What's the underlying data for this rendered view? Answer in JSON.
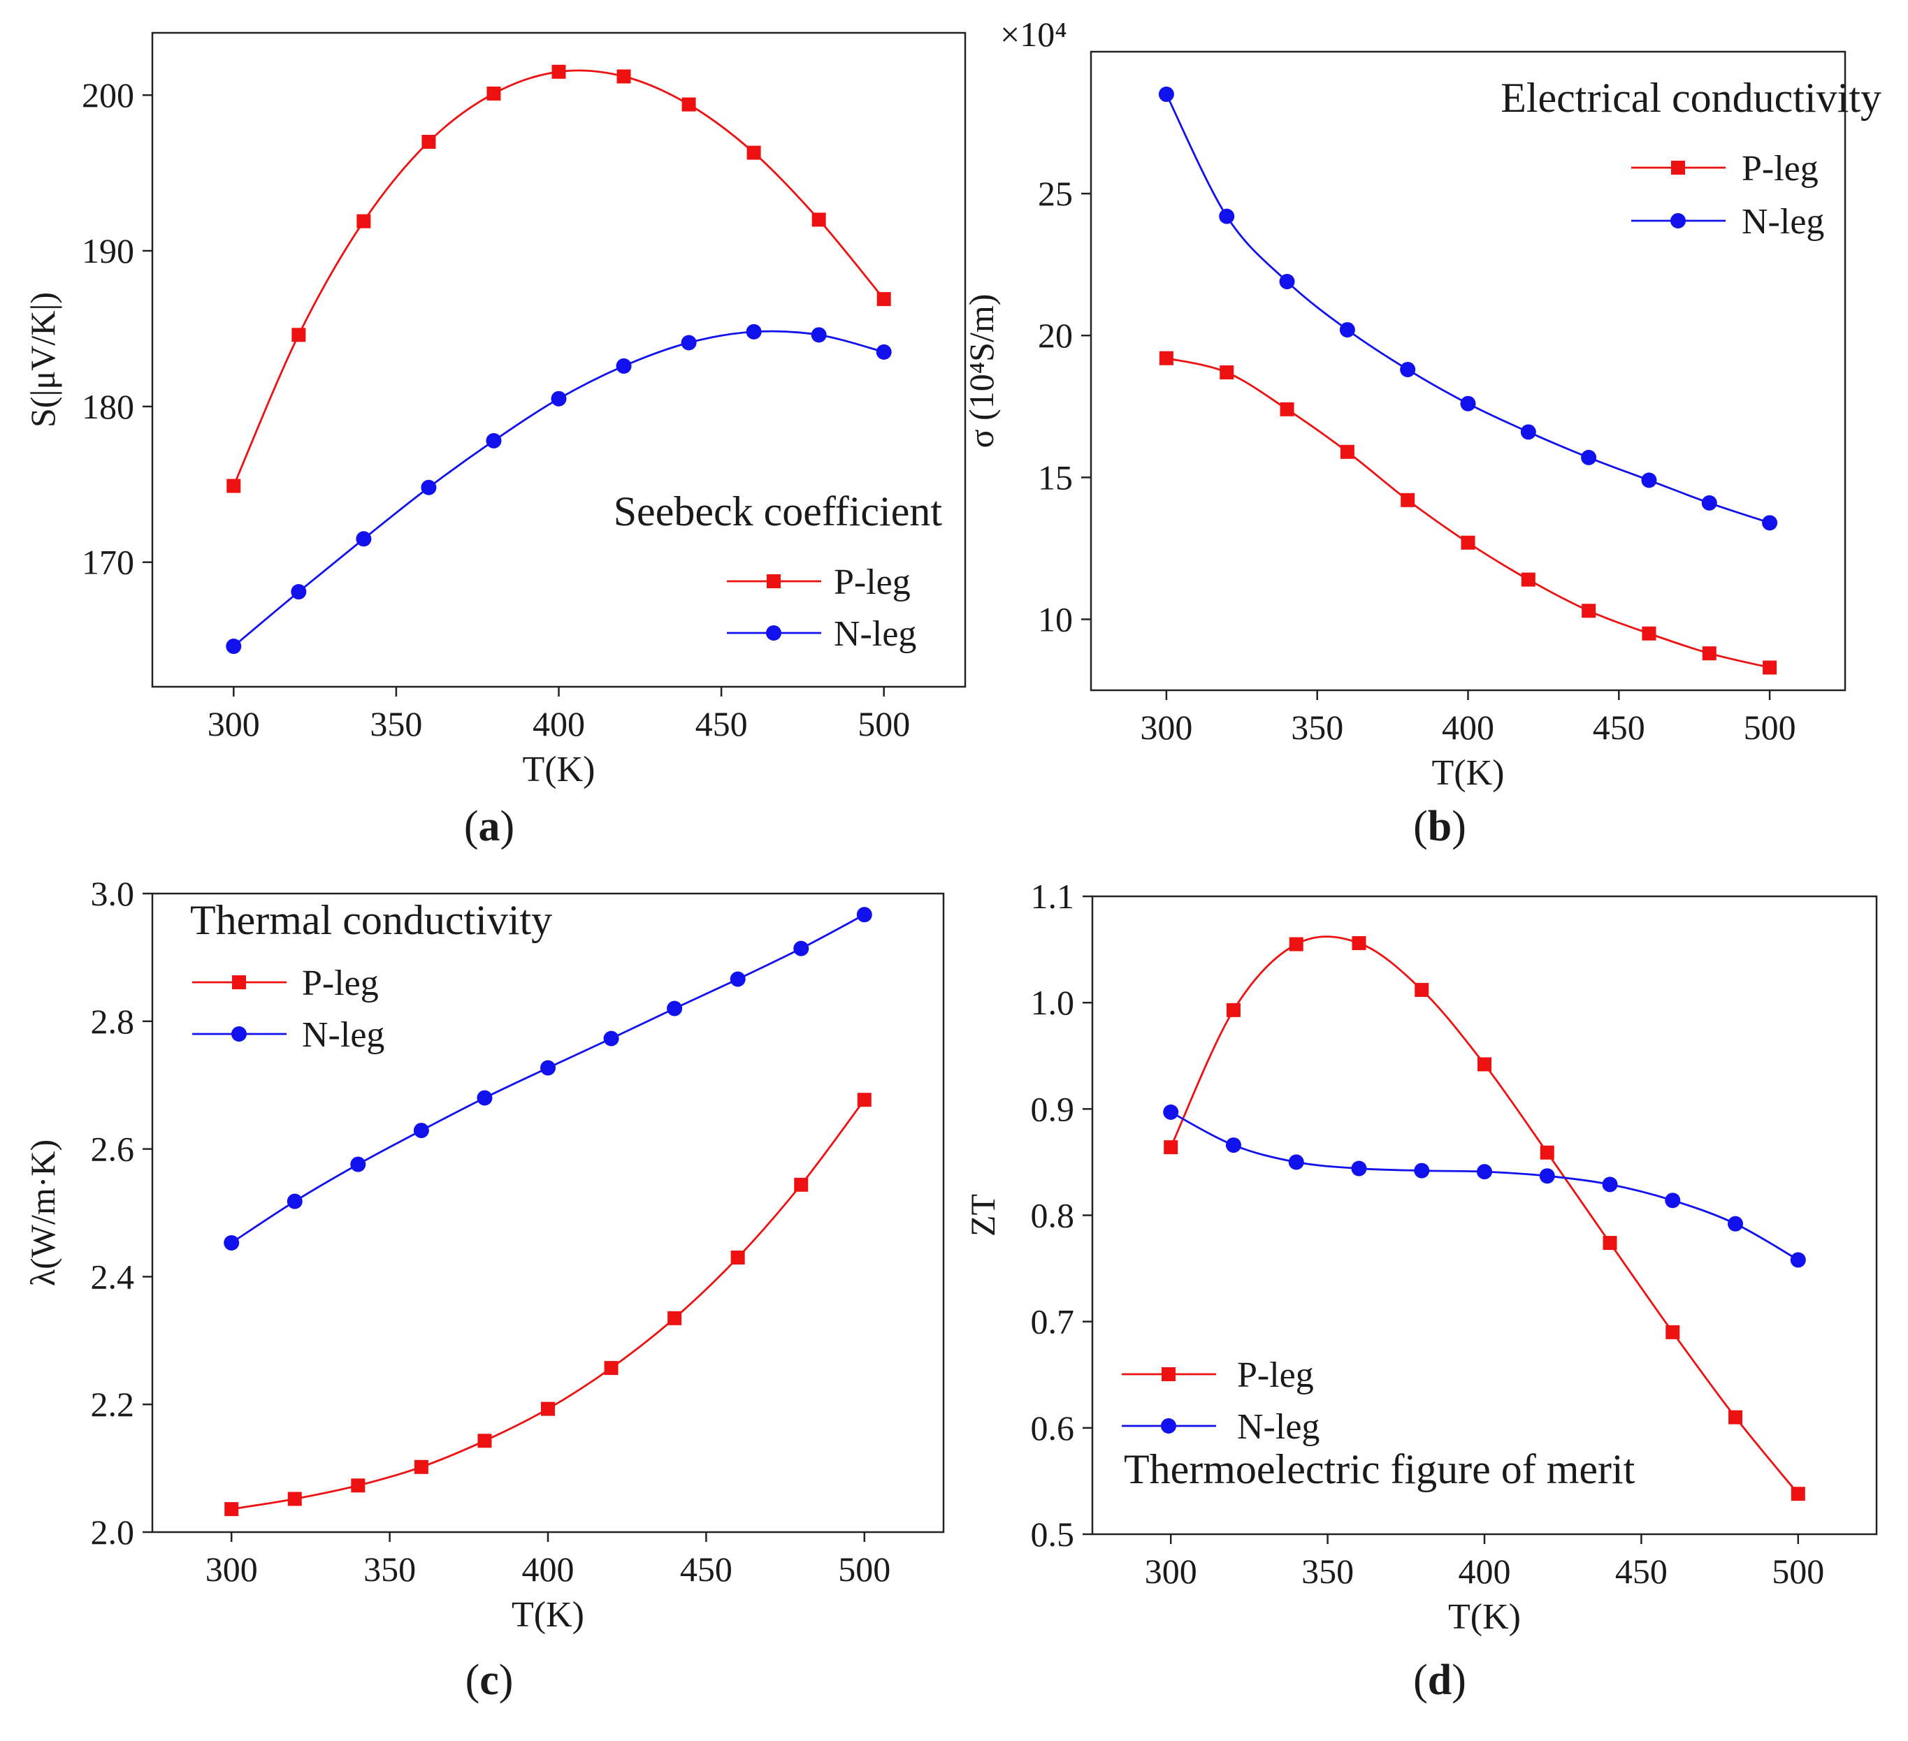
{
  "colors": {
    "p_leg": "#ee1111",
    "n_leg": "#1111ee",
    "axis": "#222222"
  },
  "chart_data": [
    {
      "id": "a",
      "type": "line",
      "panel_label": "a",
      "title": "Seebeck coefficient",
      "xlabel": "T(K)",
      "ylabel": "S(|μV/K|)",
      "xlim": [
        275,
        525
      ],
      "ylim": [
        162,
        204
      ],
      "xticks": [
        300,
        350,
        400,
        450,
        500
      ],
      "yticks": [
        170,
        180,
        190,
        200
      ],
      "legend": "bottom-right",
      "x": [
        300,
        320,
        340,
        360,
        380,
        400,
        420,
        440,
        460,
        480,
        500
      ],
      "series": [
        {
          "name": "P-leg",
          "marker": "square",
          "values": [
            174.9,
            184.6,
            191.9,
            197.0,
            200.1,
            201.5,
            201.2,
            199.4,
            196.3,
            192.0,
            186.9
          ]
        },
        {
          "name": "N-leg",
          "marker": "circle",
          "values": [
            164.6,
            168.1,
            171.5,
            174.8,
            177.8,
            180.5,
            182.6,
            184.1,
            184.8,
            184.6,
            183.5
          ]
        }
      ]
    },
    {
      "id": "b",
      "type": "line",
      "panel_label": "b",
      "title": "Electrical conductivity",
      "xlabel": "T(K)",
      "ylabel": "σ (10⁴S/m)",
      "multiplier": "×10⁴",
      "xlim": [
        275,
        525
      ],
      "ylim": [
        7.5,
        30
      ],
      "xticks": [
        300,
        350,
        400,
        450,
        500
      ],
      "yticks": [
        10,
        15,
        20,
        25
      ],
      "legend": "top-right",
      "x": [
        300,
        320,
        340,
        360,
        380,
        400,
        420,
        440,
        460,
        480,
        500
      ],
      "series": [
        {
          "name": "P-leg",
          "marker": "square",
          "values": [
            19.2,
            18.7,
            17.4,
            15.9,
            14.2,
            12.7,
            11.4,
            10.3,
            9.5,
            8.8,
            8.3
          ]
        },
        {
          "name": "N-leg",
          "marker": "circle",
          "values": [
            28.5,
            24.2,
            21.9,
            20.2,
            18.8,
            17.6,
            16.6,
            15.7,
            14.9,
            14.1,
            13.4
          ]
        }
      ]
    },
    {
      "id": "c",
      "type": "line",
      "panel_label": "c",
      "title": "Thermal conductivity",
      "xlabel": "T(K)",
      "ylabel": "λ(W/m·K)",
      "xlim": [
        275,
        525
      ],
      "ylim": [
        2.0,
        3.0
      ],
      "xticks": [
        300,
        350,
        400,
        450,
        500
      ],
      "yticks": [
        2.0,
        2.2,
        2.4,
        2.6,
        2.8,
        3.0
      ],
      "legend": "top-left",
      "x": [
        300,
        320,
        340,
        360,
        380,
        400,
        420,
        440,
        460,
        480,
        500
      ],
      "series": [
        {
          "name": "P-leg",
          "marker": "square",
          "values": [
            2.036,
            2.052,
            2.073,
            2.102,
            2.143,
            2.193,
            2.257,
            2.335,
            2.43,
            2.544,
            2.677
          ]
        },
        {
          "name": "N-leg",
          "marker": "circle",
          "values": [
            2.453,
            2.518,
            2.576,
            2.629,
            2.68,
            2.727,
            2.773,
            2.82,
            2.866,
            2.914,
            2.967
          ]
        }
      ]
    },
    {
      "id": "d",
      "type": "line",
      "panel_label": "d",
      "title": "Thermoelectric figure of merit",
      "xlabel": "T(K)",
      "ylabel": "ZT",
      "xlim": [
        275,
        525
      ],
      "ylim": [
        0.5,
        1.1
      ],
      "xticks": [
        300,
        350,
        400,
        450,
        500
      ],
      "yticks": [
        0.5,
        0.6,
        0.7,
        0.8,
        0.9,
        1.0,
        1.1
      ],
      "legend": "bottom-left",
      "x": [
        300,
        320,
        340,
        360,
        380,
        400,
        420,
        440,
        460,
        480,
        500
      ],
      "series": [
        {
          "name": "P-leg",
          "marker": "square",
          "values": [
            0.864,
            0.993,
            1.055,
            1.056,
            1.012,
            0.942,
            0.859,
            0.774,
            0.69,
            0.61,
            0.538
          ]
        },
        {
          "name": "N-leg",
          "marker": "circle",
          "values": [
            0.897,
            0.866,
            0.85,
            0.844,
            0.842,
            0.841,
            0.837,
            0.829,
            0.814,
            0.792,
            0.758
          ]
        }
      ]
    }
  ]
}
